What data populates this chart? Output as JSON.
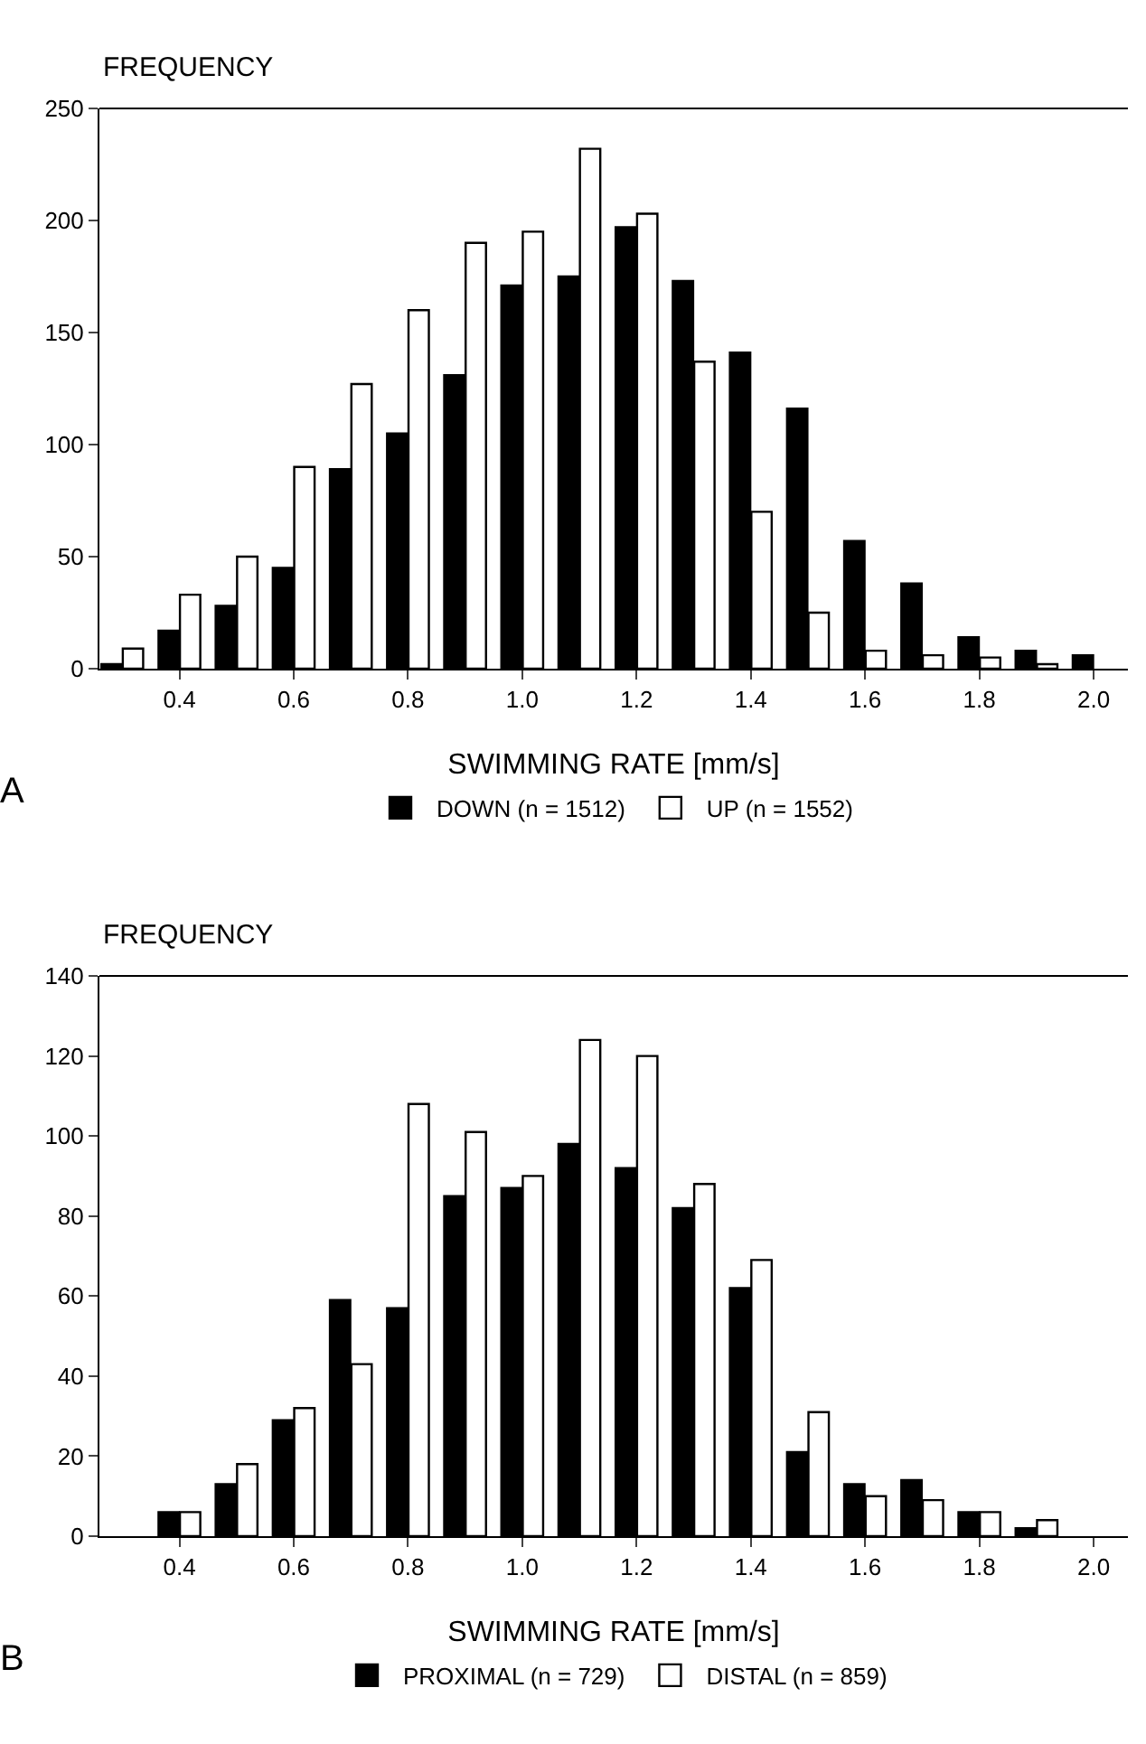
{
  "chart_data": [
    {
      "type": "bar",
      "ylabel": "FREQUENCY",
      "xlabel": "SWIMMING RATE [mm/s]",
      "annotations": [
        "A"
      ],
      "x": [
        0.3,
        0.4,
        0.5,
        0.6,
        0.7,
        0.8,
        0.9,
        1.0,
        1.1,
        1.2,
        1.3,
        1.4,
        1.5,
        1.6,
        1.7,
        1.8,
        1.9,
        2.0
      ],
      "series": [
        {
          "name": "DOWN (n = 1512)",
          "color": "#000000",
          "values": [
            2,
            17,
            28,
            45,
            89,
            105,
            131,
            171,
            175,
            197,
            173,
            141,
            116,
            57,
            38,
            14,
            8,
            6
          ]
        },
        {
          "name": "UP (n = 1552)",
          "color": "#ffffff",
          "values": [
            9,
            33,
            50,
            90,
            127,
            160,
            190,
            195,
            232,
            203,
            137,
            70,
            25,
            8,
            6,
            5,
            2,
            null
          ]
        }
      ],
      "xlim": [
        0.26,
        2.06
      ],
      "xticks": [
        {
          "value": 0.4,
          "label": "0.4"
        },
        {
          "value": 0.6,
          "label": "0.6"
        },
        {
          "value": 0.8,
          "label": "0.8"
        },
        {
          "value": 1.0,
          "label": "1.0"
        },
        {
          "value": 1.2,
          "label": "1.2"
        },
        {
          "value": 1.4,
          "label": "1.4"
        },
        {
          "value": 1.6,
          "label": "1.6"
        },
        {
          "value": 1.8,
          "label": "1.8"
        },
        {
          "value": 2.0,
          "label": "2.0"
        }
      ],
      "ylim": [
        0,
        250
      ],
      "yticks": [
        0,
        50,
        100,
        150,
        200,
        250
      ],
      "grid": false,
      "legend": "bottom"
    },
    {
      "type": "bar",
      "ylabel": "FREQUENCY",
      "xlabel": "SWIMMING RATE [mm/s]",
      "annotations": [
        "B"
      ],
      "x": [
        0.4,
        0.5,
        0.6,
        0.7,
        0.8,
        0.9,
        1.0,
        1.1,
        1.2,
        1.3,
        1.4,
        1.5,
        1.6,
        1.7,
        1.8,
        1.9
      ],
      "series": [
        {
          "name": "PROXIMAL (n = 729)",
          "color": "#000000",
          "values": [
            6,
            13,
            29,
            59,
            57,
            85,
            87,
            98,
            92,
            82,
            62,
            21,
            13,
            14,
            6,
            2
          ]
        },
        {
          "name": "DISTAL (n = 859)",
          "color": "#ffffff",
          "values": [
            6,
            18,
            32,
            43,
            108,
            101,
            90,
            124,
            120,
            88,
            69,
            31,
            10,
            9,
            6,
            4
          ]
        }
      ],
      "xlim": [
        0.26,
        2.06
      ],
      "xticks": [
        {
          "value": 0.4,
          "label": "0.4"
        },
        {
          "value": 0.6,
          "label": "0.6"
        },
        {
          "value": 0.8,
          "label": "0.8"
        },
        {
          "value": 1.0,
          "label": "1.0"
        },
        {
          "value": 1.2,
          "label": "1.2"
        },
        {
          "value": 1.4,
          "label": "1.4"
        },
        {
          "value": 1.6,
          "label": "1.6"
        },
        {
          "value": 1.8,
          "label": "1.8"
        },
        {
          "value": 2.0,
          "label": "2.0"
        }
      ],
      "ylim": [
        0,
        140
      ],
      "yticks": [
        0,
        20,
        40,
        60,
        80,
        100,
        120,
        140
      ],
      "grid": false,
      "legend": "bottom"
    }
  ]
}
